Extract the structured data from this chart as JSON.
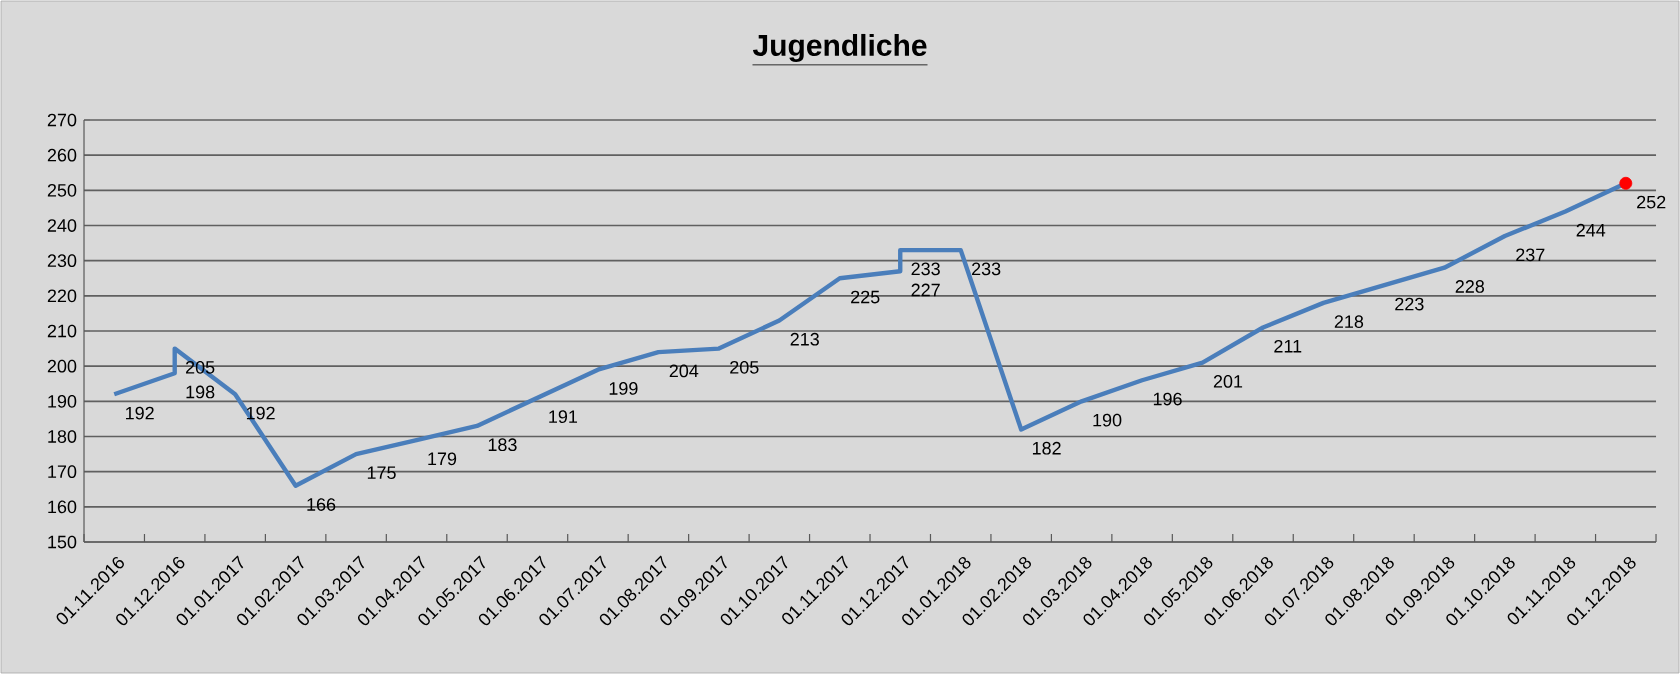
{
  "chart_data": {
    "type": "line",
    "title": "Jugendliche",
    "categories": [
      "01.11.2016",
      "01.12.2016",
      "01.01.2017",
      "01.02.2017",
      "01.03.2017",
      "01.04.2017",
      "01.05.2017",
      "01.06.2017",
      "01.07.2017",
      "01.08.2017",
      "01.09.2017",
      "01.10.2017",
      "01.11.2017",
      "01.12.2017",
      "01.01.2018",
      "01.02.2018",
      "01.03.2018",
      "01.04.2018",
      "01.05.2018",
      "01.06.2018",
      "01.07.2018",
      "01.08.2018",
      "01.09.2018",
      "01.10.2018",
      "01.11.2018",
      "01.12.2018"
    ],
    "series": [
      {
        "color": "#4a7ebb",
        "marker": "none",
        "x": [
          "01.11.2016",
          "01.12.2016",
          "01.12.2016",
          "01.01.2017",
          "01.02.2017",
          "01.03.2017",
          "01.04.2017",
          "01.05.2017",
          "01.06.2017",
          "01.07.2017",
          "01.08.2017",
          "01.09.2017",
          "01.10.2017",
          "01.11.2017",
          "01.12.2017",
          "01.12.2017",
          "01.01.2018",
          "01.02.2018",
          "01.03.2018",
          "01.04.2018",
          "01.05.2018",
          "01.06.2018",
          "01.07.2018",
          "01.08.2018",
          "01.09.2018",
          "01.10.2018",
          "01.11.2018",
          "01.12.2018"
        ],
        "values": [
          192,
          198,
          205,
          192,
          166,
          175,
          179,
          183,
          191,
          199,
          204,
          205,
          213,
          225,
          227,
          233,
          233,
          182,
          190,
          196,
          201,
          211,
          218,
          223,
          228,
          237,
          244,
          252
        ]
      },
      {
        "type": "scatter",
        "color": "#ff0000",
        "marker": "circle",
        "x": [
          "01.12.2018"
        ],
        "values": [
          252
        ],
        "value_labels": [
          null
        ]
      }
    ],
    "ylim": [
      150,
      270
    ],
    "yticks": [
      150,
      160,
      170,
      180,
      190,
      200,
      210,
      220,
      230,
      240,
      250,
      260,
      270
    ],
    "grid": "y",
    "data_labels": true,
    "legend": false
  }
}
